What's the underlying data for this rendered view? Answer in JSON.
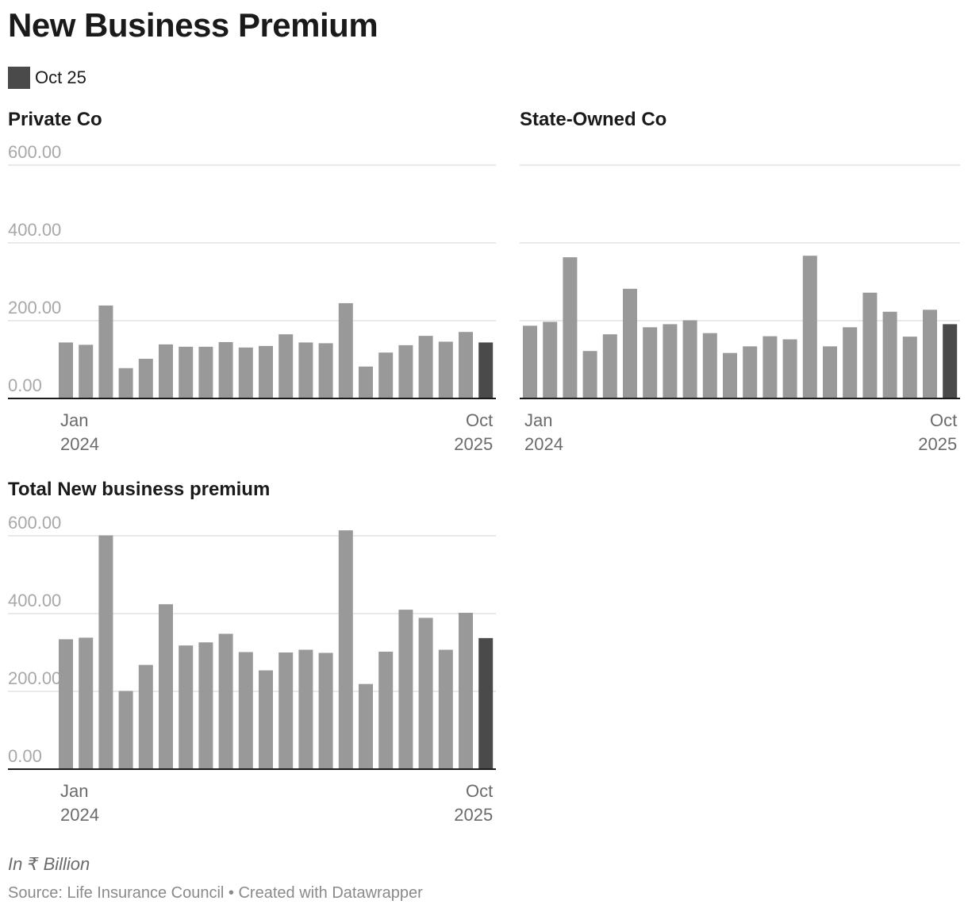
{
  "title": "New Business Premium",
  "legend": {
    "label": "Oct 25",
    "color": "#4a4a4a"
  },
  "notes": "In ₹ Billion",
  "source": "Source: Life Insurance Council • Created with Datawrapper",
  "colors": {
    "bar": "#999999",
    "highlight": "#4a4a4a",
    "grid": "#e2e2e2",
    "baseline": "#1a1a1a"
  },
  "chart_data": [
    {
      "type": "bar",
      "title": "Private Co",
      "ylim": [
        0,
        600
      ],
      "yticks": [
        "600.00",
        "400.00",
        "200.00",
        "0.00"
      ],
      "ytick_values": [
        600,
        400,
        200,
        0
      ],
      "x_labels": {
        "start": [
          "Jan",
          "2024"
        ],
        "end": [
          "Oct",
          "2025"
        ]
      },
      "values": [
        144,
        138,
        239,
        78,
        102,
        139,
        133,
        133,
        145,
        131,
        135,
        165,
        144,
        142,
        245,
        82,
        118,
        137,
        161,
        146,
        171,
        144
      ],
      "highlight_index": 21,
      "grid": true
    },
    {
      "type": "bar",
      "title": "State-Owned Co",
      "ylim": [
        0,
        600
      ],
      "yticks": [
        "",
        "",
        "",
        ""
      ],
      "ytick_values": [
        600,
        400,
        200,
        0
      ],
      "x_labels": {
        "start": [
          "Jan",
          "2024"
        ],
        "end": [
          "Oct",
          "2025"
        ]
      },
      "values": [
        187,
        197,
        363,
        122,
        165,
        282,
        183,
        191,
        201,
        168,
        117,
        134,
        160,
        152,
        367,
        134,
        183,
        272,
        223,
        159,
        228,
        191
      ],
      "highlight_index": 21,
      "grid": true
    },
    {
      "type": "bar",
      "title": "Total New business premium",
      "ylim": [
        0,
        600
      ],
      "yticks": [
        "600.00",
        "400.00",
        "200.00",
        "0.00"
      ],
      "ytick_values": [
        600,
        400,
        200,
        0
      ],
      "x_labels": {
        "start": [
          "Jan",
          "2024"
        ],
        "end": [
          "Oct",
          "2025"
        ]
      },
      "values": [
        334,
        338,
        601,
        201,
        268,
        424,
        318,
        326,
        348,
        301,
        254,
        300,
        307,
        299,
        614,
        219,
        302,
        410,
        389,
        307,
        402,
        337
      ],
      "highlight_index": 21,
      "grid": true
    }
  ]
}
